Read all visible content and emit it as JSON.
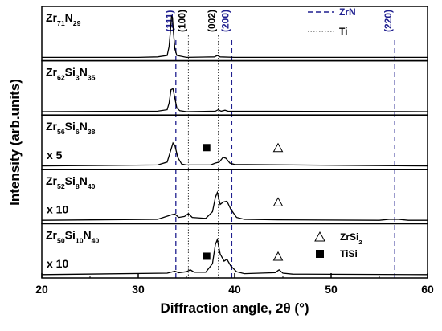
{
  "chart_data": {
    "type": "line",
    "xlabel": "Diffraction angle, 2θ (°)",
    "ylabel": "Intensity (arb.units)",
    "xlim": [
      20,
      60
    ],
    "x_ticks": [
      20,
      30,
      40,
      50,
      60
    ],
    "grid": false,
    "panels": [
      {
        "sample": "Zr71N29",
        "label_parts": [
          {
            "t": "Zr"
          },
          {
            "t": "71",
            "sub": true
          },
          {
            "t": "N"
          },
          {
            "t": "29",
            "sub": true
          }
        ],
        "scale_label": "",
        "points": [
          [
            20,
            0.02
          ],
          [
            30,
            0.02
          ],
          [
            32,
            0.03
          ],
          [
            33,
            0.06
          ],
          [
            33.2,
            0.25
          ],
          [
            33.35,
            0.6
          ],
          [
            33.45,
            0.88
          ],
          [
            33.55,
            0.85
          ],
          [
            33.65,
            0.55
          ],
          [
            33.8,
            0.2
          ],
          [
            34,
            0.06
          ],
          [
            35,
            0.02
          ],
          [
            37.9,
            0.03
          ],
          [
            38.2,
            0.06
          ],
          [
            38.5,
            0.03
          ],
          [
            40,
            0.02
          ],
          [
            60,
            0.02
          ]
        ]
      },
      {
        "sample": "Zr62Si3N35",
        "label_parts": [
          {
            "t": "Zr"
          },
          {
            "t": "62",
            "sub": true
          },
          {
            "t": "Si"
          },
          {
            "t": "3",
            "sub": true
          },
          {
            "t": "N"
          },
          {
            "t": "35",
            "sub": true
          }
        ],
        "scale_label": "",
        "points": [
          [
            20,
            0.02
          ],
          [
            32,
            0.03
          ],
          [
            33,
            0.06
          ],
          [
            33.2,
            0.2
          ],
          [
            33.4,
            0.48
          ],
          [
            33.6,
            0.5
          ],
          [
            33.8,
            0.3
          ],
          [
            34,
            0.1
          ],
          [
            34.3,
            0.04
          ],
          [
            35,
            0.02
          ],
          [
            38,
            0.03
          ],
          [
            38.3,
            0.06
          ],
          [
            38.6,
            0.03
          ],
          [
            39,
            0.05
          ],
          [
            39.3,
            0.03
          ],
          [
            60,
            0.02
          ]
        ]
      },
      {
        "sample": "Zr56Si6N38",
        "label_parts": [
          {
            "t": "Zr"
          },
          {
            "t": "56",
            "sub": true
          },
          {
            "t": "Si"
          },
          {
            "t": "6",
            "sub": true
          },
          {
            "t": "N"
          },
          {
            "t": "38",
            "sub": true
          }
        ],
        "scale_label": "x 5",
        "points": [
          [
            20,
            0.02
          ],
          [
            32,
            0.04
          ],
          [
            33,
            0.1
          ],
          [
            33.3,
            0.3
          ],
          [
            33.6,
            0.5
          ],
          [
            33.8,
            0.45
          ],
          [
            34.1,
            0.2
          ],
          [
            34.5,
            0.06
          ],
          [
            35,
            0.04
          ],
          [
            37.5,
            0.04
          ],
          [
            38,
            0.08
          ],
          [
            38.4,
            0.1
          ],
          [
            38.8,
            0.2
          ],
          [
            39.1,
            0.18
          ],
          [
            39.5,
            0.08
          ],
          [
            40,
            0.05
          ],
          [
            60,
            0.02
          ]
        ]
      },
      {
        "sample": "Zr52Si8N40",
        "label_parts": [
          {
            "t": "Zr"
          },
          {
            "t": "52",
            "sub": true
          },
          {
            "t": "Si"
          },
          {
            "t": "8",
            "sub": true
          },
          {
            "t": "N"
          },
          {
            "t": "40",
            "sub": true
          }
        ],
        "scale_label": "x 10",
        "points": [
          [
            20,
            0.02
          ],
          [
            32,
            0.04
          ],
          [
            33.5,
            0.14
          ],
          [
            33.8,
            0.15
          ],
          [
            34.2,
            0.08
          ],
          [
            34.8,
            0.1
          ],
          [
            35.2,
            0.16
          ],
          [
            35.6,
            0.08
          ],
          [
            37,
            0.06
          ],
          [
            37.7,
            0.2
          ],
          [
            38,
            0.5
          ],
          [
            38.2,
            0.6
          ],
          [
            38.5,
            0.35
          ],
          [
            38.8,
            0.4
          ],
          [
            39.2,
            0.42
          ],
          [
            39.6,
            0.25
          ],
          [
            40.2,
            0.08
          ],
          [
            41,
            0.04
          ],
          [
            44.5,
            0.03
          ],
          [
            55,
            0.02
          ],
          [
            56,
            0.04
          ],
          [
            57,
            0.04
          ],
          [
            58,
            0.02
          ],
          [
            60,
            0.02
          ]
        ]
      },
      {
        "sample": "Zr50Si10N40",
        "label_parts": [
          {
            "t": "Zr"
          },
          {
            "t": "50",
            "sub": true
          },
          {
            "t": "Si"
          },
          {
            "t": "10",
            "sub": true
          },
          {
            "t": "N"
          },
          {
            "t": "40",
            "sub": true
          }
        ],
        "scale_label": "x 10",
        "points": [
          [
            20,
            0.02
          ],
          [
            33,
            0.05
          ],
          [
            33.8,
            0.09
          ],
          [
            34.2,
            0.06
          ],
          [
            35,
            0.08
          ],
          [
            35.4,
            0.12
          ],
          [
            35.8,
            0.07
          ],
          [
            37,
            0.07
          ],
          [
            37.7,
            0.25
          ],
          [
            38,
            0.65
          ],
          [
            38.2,
            0.75
          ],
          [
            38.5,
            0.45
          ],
          [
            38.9,
            0.3
          ],
          [
            39.2,
            0.34
          ],
          [
            39.6,
            0.2
          ],
          [
            40.2,
            0.08
          ],
          [
            41,
            0.04
          ],
          [
            44.2,
            0.06
          ],
          [
            44.6,
            0.12
          ],
          [
            45,
            0.05
          ],
          [
            46,
            0.03
          ],
          [
            60,
            0.02
          ]
        ]
      }
    ],
    "reference_lines": [
      {
        "phase": "ZrN",
        "style": "dashed",
        "color": "#1f1f8f",
        "positions": [
          33.9,
          39.7,
          56.6
        ],
        "hkl": [
          "(111)",
          "(200)",
          "(220)"
        ]
      },
      {
        "phase": "Ti",
        "style": "dotted",
        "color": "#333333",
        "positions": [
          35.2,
          38.3
        ],
        "hkl": [
          "(100)",
          "(002)"
        ]
      }
    ],
    "markers": [
      {
        "phase": "ZrSi2",
        "symbol": "open-triangle",
        "points": [
          {
            "panel": 2,
            "x": 44.5
          },
          {
            "panel": 3,
            "x": 44.5
          },
          {
            "panel": 4,
            "x": 44.5
          }
        ]
      },
      {
        "phase": "TiSi",
        "symbol": "filled-square",
        "points": [
          {
            "panel": 2,
            "x": 37.1
          },
          {
            "panel": 4,
            "x": 37.1
          }
        ]
      }
    ],
    "legends": [
      {
        "entries": [
          {
            "label": "ZrN",
            "style": "dashed"
          },
          {
            "label": "Ti",
            "style": "dotted"
          }
        ],
        "position": "top-right"
      },
      {
        "entries": [
          {
            "symbol": "open-triangle",
            "label_parts": [
              {
                "t": "ZrSi"
              },
              {
                "t": "2",
                "sub": true
              }
            ]
          },
          {
            "symbol": "filled-square",
            "label_parts": [
              {
                "t": "TiSi"
              }
            ]
          }
        ],
        "position": "bottom-right"
      }
    ],
    "colors": {
      "axis": "#000000",
      "trace": "#000000",
      "zrn": "#1f1f8f",
      "ti": "#333333"
    }
  }
}
